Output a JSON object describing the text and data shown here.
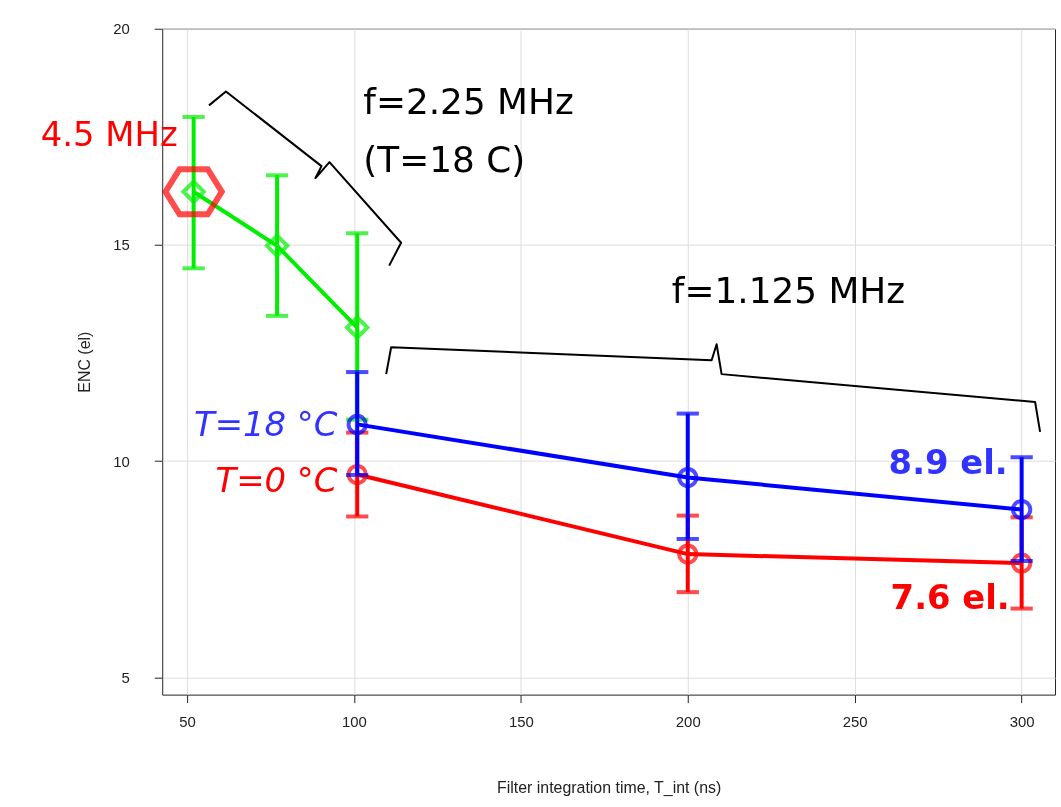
{
  "chart_data": {
    "type": "line",
    "xlabel": "Filter integration time, T_int (ns)",
    "ylabel": "ENC (el)",
    "xlim": [
      42.6,
      310
    ],
    "xticks": [
      50,
      100,
      150,
      200,
      250,
      300
    ],
    "ylim": [
      4.6,
      20
    ],
    "yticks": [
      5,
      10,
      15,
      20
    ],
    "grid": true,
    "line_style": "solid",
    "series": [
      {
        "color": "#00ee00",
        "marker": "diamond",
        "x": [
          52,
          77,
          101
        ],
        "values": [
          16.23,
          14.98,
          13.09
        ],
        "errors": [
          [
            14.46,
            17.96
          ],
          [
            13.36,
            16.61
          ],
          [
            10.96,
            15.27
          ]
        ]
      },
      {
        "color": "#ff0000",
        "marker": "circle",
        "x": [
          101,
          200,
          300
        ],
        "values": [
          9.69,
          7.85,
          7.64
        ],
        "errors": [
          [
            8.72,
            10.66
          ],
          [
            6.97,
            8.74
          ],
          [
            6.59,
            8.7
          ]
        ]
      },
      {
        "color": "#0000ff",
        "marker": "circle",
        "x": [
          101,
          200,
          300
        ],
        "values": [
          10.85,
          9.62,
          8.88
        ],
        "errors": [
          [
            9.68,
            12.06
          ],
          [
            8.2,
            11.1
          ],
          [
            7.69,
            10.09
          ]
        ]
      }
    ],
    "annotations": [
      "f=2.25 MHz",
      "(T=18 C)",
      "f=1.125 MHz",
      {
        "text": "4.5 MHz",
        "x": 52,
        "y": 16.23
      },
      {
        "text": "T=18 °C",
        "x": 101,
        "y": 10.85
      },
      {
        "text": "T=0 °C",
        "x": 101,
        "y": 9.69
      },
      {
        "text": "8.9 el.",
        "x": 300,
        "y": 8.88
      },
      {
        "text": "7.6 el.",
        "x": 300,
        "y": 7.64
      }
    ]
  }
}
